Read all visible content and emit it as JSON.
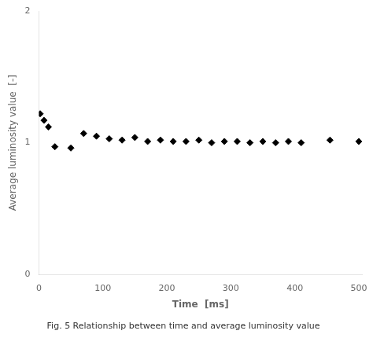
{
  "chart_data": {
    "type": "scatter",
    "x": [
      2,
      8,
      15,
      25,
      50,
      70,
      90,
      110,
      130,
      150,
      170,
      190,
      210,
      230,
      250,
      270,
      290,
      310,
      330,
      350,
      370,
      390,
      410,
      455,
      500
    ],
    "values": [
      1.22,
      1.17,
      1.12,
      0.97,
      0.96,
      1.07,
      1.05,
      1.03,
      1.02,
      1.04,
      1.01,
      1.02,
      1.01,
      1.01,
      1.02,
      1.0,
      1.01,
      1.01,
      1.0,
      1.01,
      1.0,
      1.01,
      1.0,
      1.02,
      1.01
    ],
    "marker": "diamond",
    "color": "black",
    "x_label": "Time  [ms]",
    "y_label": "Average luminosity value  [-]",
    "xlim": [
      0,
      505
    ],
    "ylim": [
      0,
      2
    ],
    "xticks": [
      0,
      100,
      200,
      300,
      400,
      500
    ],
    "yticks": [
      0,
      1,
      2
    ],
    "caption": "Fig. 5 Relationship between time and average luminosity value",
    "grid": false
  }
}
